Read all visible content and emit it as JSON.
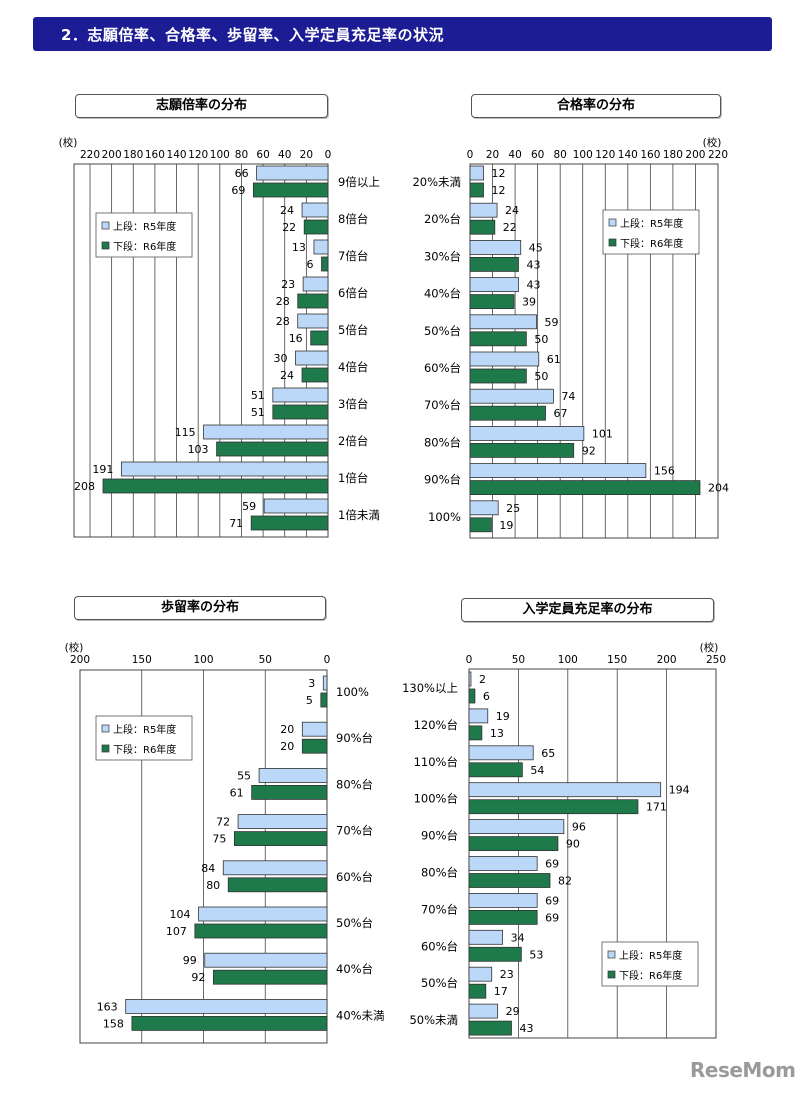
{
  "header": {
    "title": "2．志願倍率、合格率、歩留率、入学定員充足率の状況"
  },
  "watermark": "ReseMom",
  "chart_data": [
    {
      "type": "bar",
      "title": "志願倍率の分布",
      "unit": "(校)",
      "orientation": "horizontal",
      "direction": "right-to-left",
      "categories": [
        "9倍以上",
        "8倍台",
        "7倍台",
        "6倍台",
        "5倍台",
        "4倍台",
        "3倍台",
        "2倍台",
        "1倍台",
        "1倍未満"
      ],
      "series": [
        {
          "name": "上段：R5年度",
          "color": "#bcd8f8",
          "values": [
            66,
            24,
            13,
            23,
            28,
            30,
            51,
            115,
            191,
            59
          ]
        },
        {
          "name": "下段：R6年度",
          "color": "#1e7a4a",
          "values": [
            69,
            22,
            6,
            28,
            16,
            24,
            51,
            103,
            208,
            71
          ]
        }
      ],
      "xlim": [
        0,
        220
      ],
      "ticks": [
        220,
        200,
        180,
        160,
        140,
        120,
        100,
        80,
        60,
        40,
        20,
        0
      ],
      "legend": "top-left"
    },
    {
      "type": "bar",
      "title": "合格率の分布",
      "unit": "(校)",
      "orientation": "horizontal",
      "direction": "left-to-right",
      "categories": [
        "20%未満",
        "20%台",
        "30%台",
        "40%台",
        "50%台",
        "60%台",
        "70%台",
        "80%台",
        "90%台",
        "100%"
      ],
      "series": [
        {
          "name": "上段：R5年度",
          "color": "#bcd8f8",
          "values": [
            12,
            24,
            45,
            43,
            59,
            61,
            74,
            101,
            156,
            25
          ]
        },
        {
          "name": "下段：R6年度",
          "color": "#1e7a4a",
          "values": [
            12,
            22,
            43,
            39,
            50,
            50,
            67,
            92,
            204,
            19
          ]
        }
      ],
      "xlim": [
        0,
        220
      ],
      "ticks": [
        0,
        20,
        40,
        60,
        80,
        100,
        120,
        140,
        160,
        180,
        200,
        220
      ],
      "legend": "top-right"
    },
    {
      "type": "bar",
      "title": "歩留率の分布",
      "unit": "(校)",
      "orientation": "horizontal",
      "direction": "right-to-left",
      "categories": [
        "100%",
        "90%台",
        "80%台",
        "70%台",
        "60%台",
        "50%台",
        "40%台",
        "40%未満"
      ],
      "series": [
        {
          "name": "上段：R5年度",
          "color": "#bcd8f8",
          "values": [
            3,
            20,
            55,
            72,
            84,
            104,
            99,
            163
          ]
        },
        {
          "name": "下段：R6年度",
          "color": "#1e7a4a",
          "values": [
            5,
            20,
            61,
            75,
            80,
            107,
            92,
            158
          ]
        }
      ],
      "xlim": [
        0,
        200
      ],
      "ticks": [
        200,
        150,
        100,
        50,
        0
      ],
      "legend": "top-left"
    },
    {
      "type": "bar",
      "title": "入学定員充足率の分布",
      "unit": "(校)",
      "orientation": "horizontal",
      "direction": "left-to-right",
      "categories": [
        "130%以上",
        "120%台",
        "110%台",
        "100%台",
        "90%台",
        "80%台",
        "70%台",
        "60%台",
        "50%台",
        "50%未満"
      ],
      "series": [
        {
          "name": "上段：R5年度",
          "color": "#bcd8f8",
          "values": [
            2,
            19,
            65,
            194,
            96,
            69,
            69,
            34,
            23,
            29
          ]
        },
        {
          "name": "下段：R6年度",
          "color": "#1e7a4a",
          "values": [
            6,
            13,
            54,
            171,
            90,
            82,
            69,
            53,
            17,
            43
          ]
        }
      ],
      "xlim": [
        0,
        250
      ],
      "ticks": [
        0,
        50,
        100,
        150,
        200,
        250
      ],
      "legend": "bottom-right"
    }
  ]
}
